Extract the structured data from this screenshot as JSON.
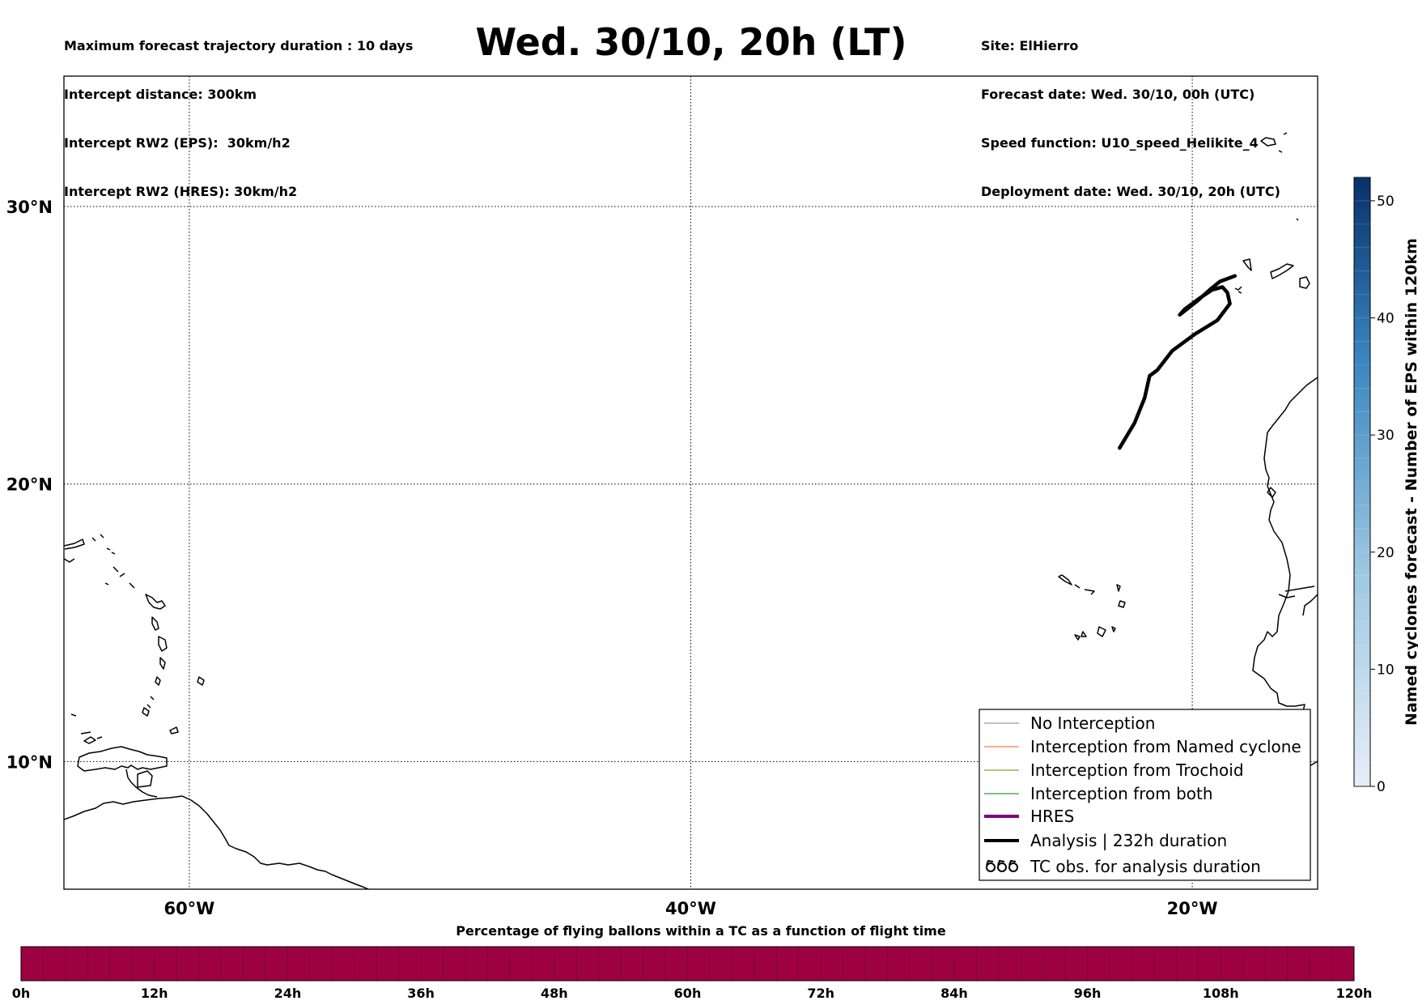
{
  "header": {
    "title": "Wed. 30/10, 20h (LT)",
    "left_lines": [
      "Maximum forecast trajectory duration : 10 days",
      "Intercept distance: 300km",
      "Intercept RW2 (EPS):  30km/h2",
      "Intercept RW2 (HRES): 30km/h2"
    ],
    "right_lines": [
      "Site: ElHierro",
      "Forecast date: Wed. 30/10, 00h (UTC)",
      "Speed function: U10_speed_Helikite_4",
      "Deployment date: Wed. 30/10, 20h (UTC)"
    ]
  },
  "map": {
    "lon_range": [
      -65,
      -15
    ],
    "lat_range": [
      5.4,
      34.7
    ],
    "lon_ticks": [
      {
        "value": -60,
        "label": "60°W"
      },
      {
        "value": -40,
        "label": "40°W"
      },
      {
        "value": -20,
        "label": "20°W"
      }
    ],
    "lat_ticks": [
      {
        "value": 30,
        "label": "30°N"
      },
      {
        "value": 20,
        "label": "20°N"
      },
      {
        "value": 10,
        "label": "10°N"
      }
    ],
    "grid": true,
    "analysis_track": [
      [
        -22.9,
        21.3
      ],
      [
        -22.3,
        22.2
      ],
      [
        -21.9,
        23.1
      ],
      [
        -21.7,
        23.9
      ],
      [
        -21.4,
        24.1
      ],
      [
        -20.8,
        24.8
      ],
      [
        -19.9,
        25.4
      ],
      [
        -19.0,
        25.9
      ],
      [
        -18.5,
        26.5
      ],
      [
        -18.6,
        26.9
      ],
      [
        -18.8,
        27.1
      ],
      [
        -19.2,
        27.0
      ],
      [
        -19.7,
        26.7
      ],
      [
        -20.3,
        26.3
      ],
      [
        -20.5,
        26.1
      ],
      [
        -19.8,
        26.6
      ],
      [
        -19.3,
        27.0
      ],
      [
        -18.9,
        27.3
      ],
      [
        -18.3,
        27.5
      ]
    ]
  },
  "legend": {
    "entries": [
      {
        "label": "No Interception",
        "color": "#808080",
        "style": "thin"
      },
      {
        "label": "Interception from Named cyclone",
        "color": "#ff5a1f",
        "style": "thin"
      },
      {
        "label": "Interception from Trochoid",
        "color": "#808000",
        "style": "thin"
      },
      {
        "label": "Interception from both",
        "color": "#008000",
        "style": "thin"
      },
      {
        "label": "HRES",
        "color": "#800080",
        "style": "thick"
      },
      {
        "label": "Analysis | 232h duration",
        "color": "#000000",
        "style": "thick"
      },
      {
        "label": "TC obs. for analysis duration",
        "color": "#000000",
        "style": "cyclone-symbols"
      }
    ]
  },
  "colorbar_right": {
    "label": "Named cyclones forecast - Number of EPS within 120km",
    "min": 0,
    "max": 52,
    "ticks": [
      0,
      10,
      20,
      30,
      40,
      50
    ],
    "colormap": [
      "#e6eef8",
      "#9ec8e2",
      "#3a86c0",
      "#08306b"
    ]
  },
  "colorbar_bottom": {
    "title": "Percentage of flying ballons within a TC as a function of flight time",
    "ticks": [
      "0h",
      "12h",
      "24h",
      "36h",
      "48h",
      "60h",
      "72h",
      "84h",
      "96h",
      "108h",
      "120h"
    ],
    "fill_color": "#9e0142",
    "segments": 60
  }
}
